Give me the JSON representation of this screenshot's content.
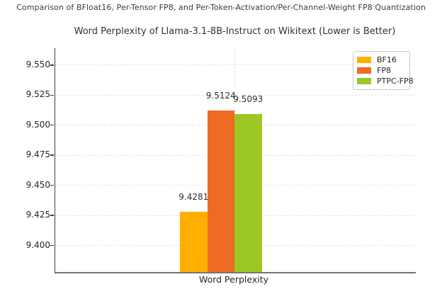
{
  "figure": {
    "caption": "Comparison of BFloat16, Per-Tensor FP8, and Per-Token-Activation/Per-Channel-Weight FP8 Quantization"
  },
  "chart_data": {
    "type": "bar",
    "title": "Word Perplexity of Llama-3.1-8B-Instruct on Wikitext (Lower is Better)",
    "suptitle": "Comparison of BFloat16, Per-Tensor FP8, and Per-Token-Activation/Per-Channel-Weight FP8 Quantization",
    "categories": [
      "Word Perplexity"
    ],
    "series": [
      {
        "name": "BF16",
        "values": [
          9.4281
        ],
        "color": "#ffaf00",
        "value_label": "9.4281"
      },
      {
        "name": "FP8",
        "values": [
          9.5124
        ],
        "color": "#ee6b23",
        "value_label": "9.5124"
      },
      {
        "name": "PTPC-FP8",
        "values": [
          9.5093
        ],
        "color": "#9dc723",
        "value_label": "9.5093"
      }
    ],
    "xlabel": "Word Perplexity",
    "ylabel": "",
    "ylim": [
      9.378,
      9.564
    ],
    "yticks": [
      9.4,
      9.425,
      9.45,
      9.475,
      9.5,
      9.525,
      9.55
    ],
    "ytick_labels": [
      "9.400",
      "9.425",
      "9.450",
      "9.475",
      "9.500",
      "9.525",
      "9.550"
    ],
    "grid": true,
    "grid_style": "dotted",
    "legend_position": "upper right",
    "legend_entries": [
      "BF16",
      "FP8",
      "PTPC-FP8"
    ],
    "colors": {
      "BF16": "#ffaf00",
      "FP8": "#ee6b23",
      "PTPC-FP8": "#9dc723"
    }
  }
}
